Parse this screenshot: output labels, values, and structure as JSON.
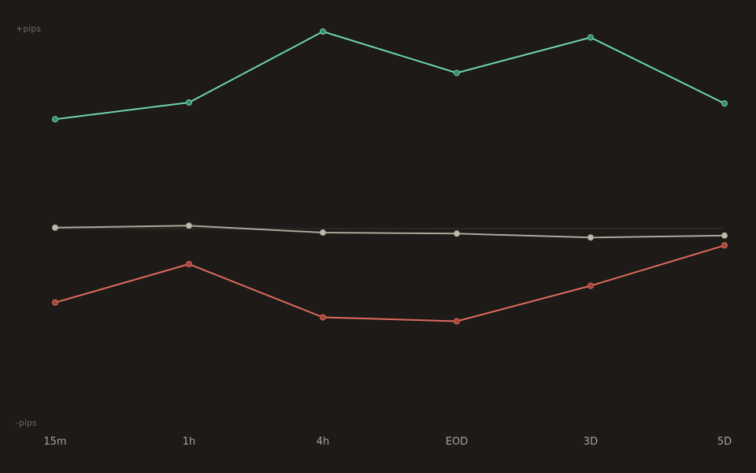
{
  "chart_data": {
    "type": "line",
    "categories": [
      "15m",
      "1h",
      "4h",
      "EOD",
      "3D",
      "5D"
    ],
    "ylim": [
      -100,
      100
    ],
    "y_top_label": "+pips",
    "y_bottom_label": "-pips",
    "grid": false,
    "baseline": 0,
    "series": [
      {
        "values": [
          55.5,
          64.0,
          100.0,
          79.0,
          97.0,
          63.5
        ],
        "color": "#6fd3ae",
        "point_color": "#3b8a6a"
      },
      {
        "values": [
          0.5,
          1.5,
          -2.0,
          -2.5,
          -4.5,
          -3.5
        ],
        "color": "#b0a69b",
        "point_color": "#c2b9ae"
      },
      {
        "values": [
          -37.5,
          -18.0,
          -45.0,
          -47.0,
          -29.0,
          -8.5
        ],
        "color": "#dd6b5c",
        "point_color": "#a4453c"
      }
    ],
    "colors": {
      "background": "#1d1a17",
      "baseline": "#2e2a26"
    }
  }
}
